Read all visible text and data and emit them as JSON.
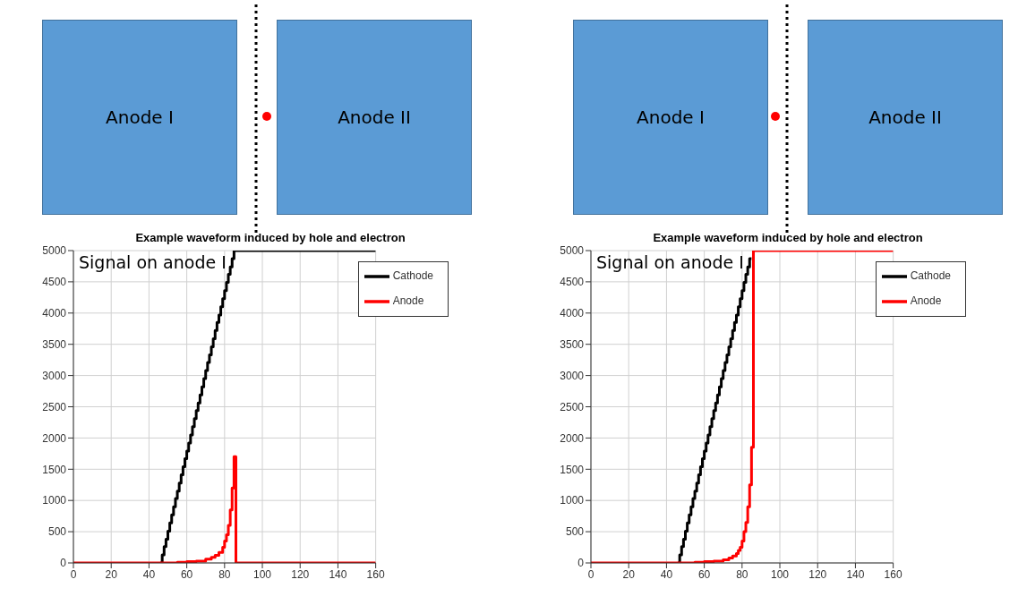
{
  "chart_data": [
    {
      "type": "step",
      "title": "Example waveform induced by hole and electron",
      "annotations": [
        "Signal on anode I",
        "Anode I",
        "Anode II"
      ],
      "xlim": [
        0,
        160
      ],
      "xticks": [
        0,
        20,
        40,
        60,
        80,
        100,
        120,
        140,
        160
      ],
      "ylim": [
        0,
        5000
      ],
      "yticks": [
        0,
        500,
        1000,
        1500,
        2000,
        2500,
        3000,
        3500,
        4000,
        4500,
        5000
      ],
      "grid": true,
      "legend": "top right",
      "series": [
        {
          "name": "Cathode",
          "color": "#000000",
          "x": [
            46,
            47,
            48,
            49,
            50,
            51,
            52,
            53,
            54,
            55,
            56,
            57,
            58,
            59,
            60,
            61,
            62,
            63,
            64,
            65,
            66,
            67,
            68,
            69,
            70,
            71,
            72,
            73,
            74,
            75,
            76,
            77,
            78,
            79,
            80,
            81,
            82,
            83,
            84,
            85,
            160
          ],
          "values": [
            0,
            130,
            260,
            380,
            510,
            640,
            770,
            900,
            1030,
            1150,
            1280,
            1410,
            1540,
            1670,
            1790,
            1920,
            2050,
            2180,
            2310,
            2440,
            2560,
            2690,
            2820,
            2950,
            3080,
            3210,
            3330,
            3460,
            3590,
            3720,
            3850,
            3970,
            4100,
            4230,
            4360,
            4490,
            4620,
            4740,
            4870,
            5000,
            5000
          ]
        },
        {
          "name": "Anode",
          "color": "#ff0000",
          "x": [
            0,
            47,
            55,
            60,
            65,
            70,
            73,
            75,
            77,
            79,
            80,
            81,
            82,
            83,
            84,
            85,
            86,
            160
          ],
          "values": [
            0,
            0,
            10,
            20,
            30,
            60,
            90,
            120,
            170,
            250,
            350,
            450,
            600,
            850,
            1200,
            1700,
            0,
            0
          ]
        }
      ]
    },
    {
      "type": "step",
      "title": "Example waveform induced by hole and electron",
      "annotations": [
        "Signal on anode I",
        "Anode I",
        "Anode II"
      ],
      "xlim": [
        0,
        160
      ],
      "xticks": [
        0,
        20,
        40,
        60,
        80,
        100,
        120,
        140,
        160
      ],
      "ylim": [
        0,
        5000
      ],
      "yticks": [
        0,
        500,
        1000,
        1500,
        2000,
        2500,
        3000,
        3500,
        4000,
        4500,
        5000
      ],
      "grid": true,
      "legend": "top right",
      "series": [
        {
          "name": "Cathode",
          "color": "#000000",
          "x": [
            46,
            47,
            48,
            49,
            50,
            51,
            52,
            53,
            54,
            55,
            56,
            57,
            58,
            59,
            60,
            61,
            62,
            63,
            64,
            65,
            66,
            67,
            68,
            69,
            70,
            71,
            72,
            73,
            74,
            75,
            76,
            77,
            78,
            79,
            80,
            81,
            82,
            83,
            84,
            85
          ],
          "values": [
            0,
            130,
            260,
            380,
            510,
            640,
            770,
            900,
            1030,
            1150,
            1280,
            1410,
            1540,
            1670,
            1790,
            1920,
            2050,
            2180,
            2310,
            2440,
            2560,
            2690,
            2820,
            2950,
            3080,
            3210,
            3330,
            3460,
            3590,
            3720,
            3850,
            3970,
            4100,
            4230,
            4360,
            4490,
            4620,
            4740,
            4870,
            4870
          ]
        },
        {
          "name": "Anode",
          "color": "#ff0000",
          "x": [
            0,
            47,
            55,
            60,
            65,
            70,
            73,
            75,
            77,
            78,
            79,
            80,
            81,
            82,
            83,
            84,
            85,
            86,
            160
          ],
          "values": [
            0,
            0,
            10,
            20,
            30,
            50,
            80,
            110,
            150,
            200,
            250,
            350,
            500,
            650,
            900,
            1250,
            1850,
            5000,
            5000
          ]
        }
      ]
    }
  ]
}
